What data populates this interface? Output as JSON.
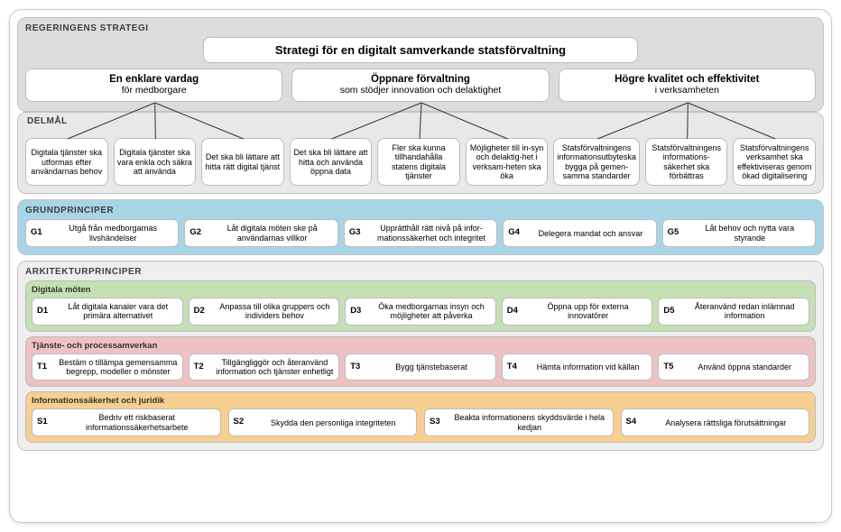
{
  "colors": {
    "frame_border": "#c8c8c8",
    "box_border": "#bcbcbc",
    "bg_strategi": "#dcdcdc",
    "bg_delmal": "#e8e8e8",
    "bg_grund": "#a8d5e5",
    "bg_ark": "#eeeeee",
    "bg_green": "#c5e0b4",
    "bg_red": "#eec2c2",
    "bg_orange": "#f7cf90",
    "text": "#3f3f3f",
    "connector": "#333333"
  },
  "strategi": {
    "label": "REGERINGENS  STRATEGI",
    "title": "Strategi för en digitalt samverkande statsförvaltning",
    "goals": [
      {
        "title": "En enklare vardag",
        "sub": "för medborgare"
      },
      {
        "title": "Öppnare förvaltning",
        "sub": "som stödjer innovation och delaktighet"
      },
      {
        "title": "Högre kvalitet och effektivitet",
        "sub": "i verksamheten"
      }
    ]
  },
  "delmal": {
    "label": "DELMÅL",
    "items": [
      "Digitala tjänster ska utformas efter användarnas behov",
      "Digitala tjänster ska vara enkla och säkra att använda",
      "Det ska bli lättare att hitta rätt digital tjänst",
      "Det ska bli lättare att hitta och använda öppna data",
      "Fler ska kunna tillhandahålla statens digitala tjänster",
      "Möjligheter till in-syn och delaktig-het i verksam-heten ska öka",
      "Statsförvaltningens informationsutbyteska bygga på gemen-samma standarder",
      "Statsförvaltningens informations-säkerhet ska förbättras",
      "Statsförvaltningens verksamhet ska effektiviseras genom ökad digitalisering"
    ]
  },
  "grund": {
    "label": "GRUNDPRINCIPER",
    "items": [
      {
        "code": "G1",
        "text": "Utgå från medborgarnas livshändelser"
      },
      {
        "code": "G2",
        "text": "Låt digitala möten ske på användarnas villkor"
      },
      {
        "code": "G3",
        "text": "Upprätthåll rätt nivå på infor-mationssäkerhet och integritet"
      },
      {
        "code": "G4",
        "text": "Delegera mandat och ansvar"
      },
      {
        "code": "G5",
        "text": "Låt behov och nytta vara styrande"
      }
    ]
  },
  "ark": {
    "label": "ARKITEKTURPRINCIPER",
    "groups": [
      {
        "label": "Digitala möten",
        "cssClass": "sub-green",
        "items": [
          {
            "code": "D1",
            "text": "Låt digitala kanaler vara det primära alternativet"
          },
          {
            "code": "D2",
            "text": "Anpassa till olika gruppers och individers behov"
          },
          {
            "code": "D3",
            "text": "Öka medborgarnas insyn och möjligheter att påverka"
          },
          {
            "code": "D4",
            "text": "Öppna upp för externa innovatörer"
          },
          {
            "code": "D5",
            "text": "Återanvänd redan inlämnad information"
          }
        ]
      },
      {
        "label": "Tjänste- och processamverkan",
        "cssClass": "sub-red",
        "items": [
          {
            "code": "T1",
            "text": "Bestäm o tillämpa gemensamma begrepp, modeller o mönster"
          },
          {
            "code": "T2",
            "text": "Tillgängliggör och återanvänd information och tjänster enhetligt"
          },
          {
            "code": "T3",
            "text": "Bygg tjänstebaserat"
          },
          {
            "code": "T4",
            "text": "Hämta information vid källan"
          },
          {
            "code": "T5",
            "text": "Använd öppna standarder"
          }
        ]
      },
      {
        "label": "Informationssäkerhet och juridik",
        "cssClass": "sub-orange",
        "items": [
          {
            "code": "S1",
            "text": "Bedriv ett riskbaserat informationssäkerhetsarbete"
          },
          {
            "code": "S2",
            "text": "Skydda den personliga integriteten"
          },
          {
            "code": "S3",
            "text": "Beakta informationens skyddsvärde i hela kedjan"
          },
          {
            "code": "S4",
            "text": "Analysera rättsliga förutsättningar"
          }
        ]
      }
    ]
  },
  "connectors": {
    "stroke": "#333333",
    "stroke_width": 1,
    "groups": [
      {
        "parent_goal_index": 0,
        "child_delmal_indices": [
          0,
          1,
          2
        ]
      },
      {
        "parent_goal_index": 1,
        "child_delmal_indices": [
          3,
          4,
          5
        ]
      },
      {
        "parent_goal_index": 2,
        "child_delmal_indices": [
          6,
          7,
          8
        ]
      }
    ]
  }
}
